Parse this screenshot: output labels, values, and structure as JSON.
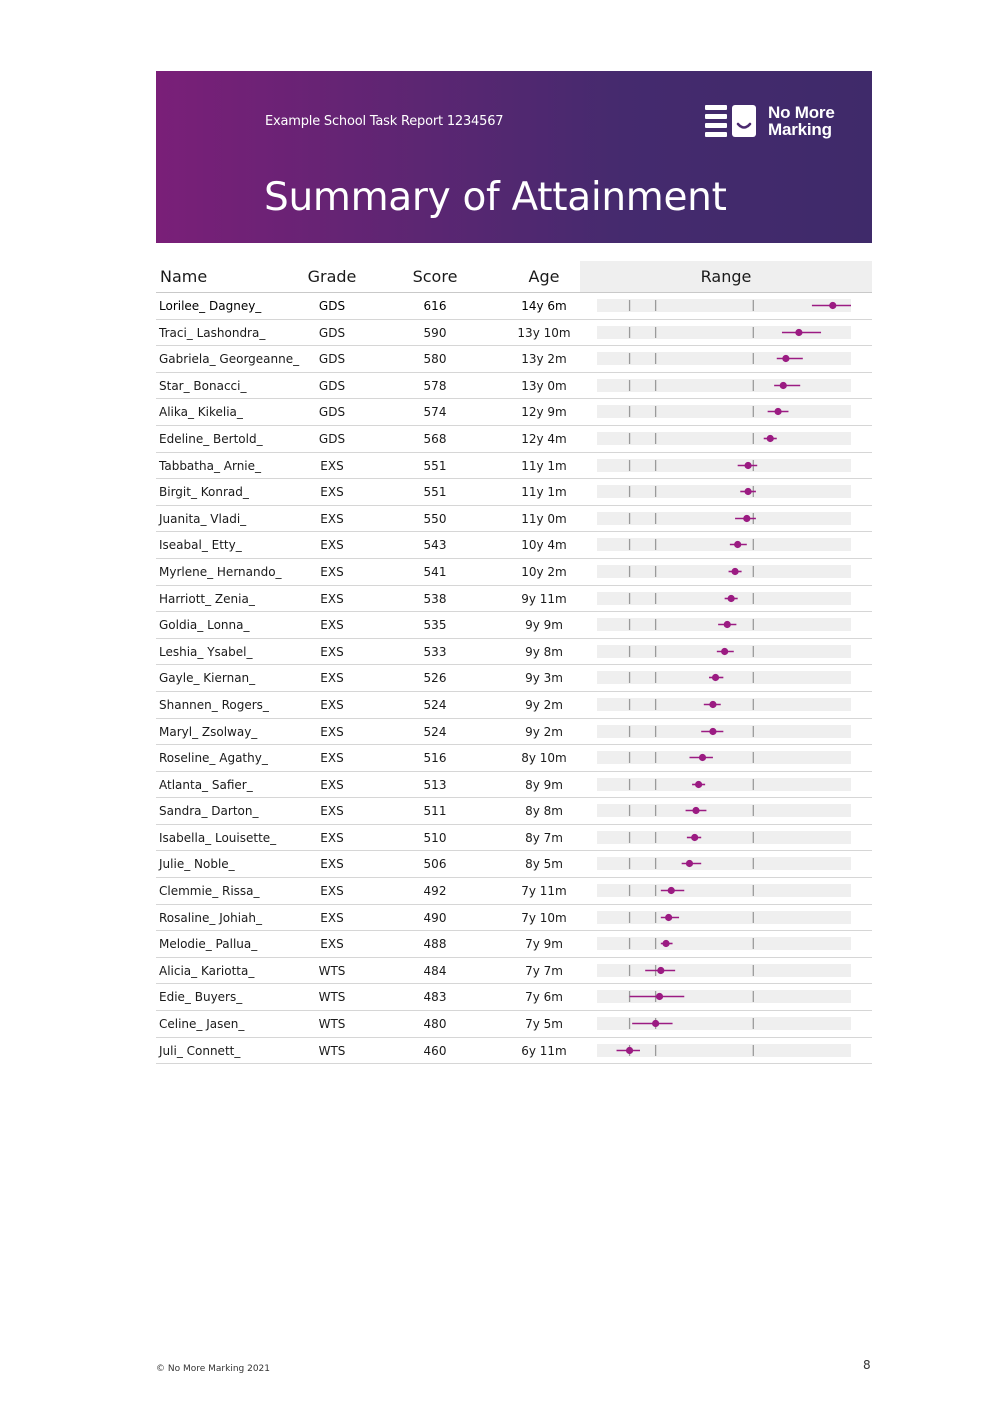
{
  "header": {
    "report_title": "Example School Task Report 1234567",
    "page_title": "Summary of Attainment",
    "logo_text_line1": "No More",
    "logo_text_line2": "Marking"
  },
  "table": {
    "columns": [
      "Name",
      "Grade",
      "Score",
      "Age",
      "Range"
    ],
    "range_axis": {
      "min": 435,
      "max": 630,
      "markers": [
        460,
        480,
        555
      ]
    },
    "rows": [
      {
        "name": "Lorilee_ Dagney_",
        "grade": "GDS",
        "score": "616",
        "age": "14y 6m",
        "est": 616,
        "low": 600,
        "high": 630
      },
      {
        "name": "Traci_ Lashondra_",
        "grade": "GDS",
        "score": "590",
        "age": "13y 10m",
        "est": 590,
        "low": 577,
        "high": 607
      },
      {
        "name": "Gabriela_ Georgeanne_",
        "grade": "GDS",
        "score": "580",
        "age": "13y 2m",
        "est": 580,
        "low": 573,
        "high": 593
      },
      {
        "name": "Star_ Bonacci_",
        "grade": "GDS",
        "score": "578",
        "age": "13y 0m",
        "est": 578,
        "low": 571,
        "high": 591
      },
      {
        "name": "Alika_ Kikelia_",
        "grade": "GDS",
        "score": "574",
        "age": "12y 9m",
        "est": 574,
        "low": 566,
        "high": 582
      },
      {
        "name": "Edeline_ Bertold_",
        "grade": "GDS",
        "score": "568",
        "age": "12y 4m",
        "est": 568,
        "low": 563,
        "high": 573
      },
      {
        "name": "Tabbatha_ Arnie_",
        "grade": "EXS",
        "score": "551",
        "age": "11y 1m",
        "est": 551,
        "low": 543,
        "high": 558
      },
      {
        "name": "Birgit_ Konrad_",
        "grade": "EXS",
        "score": "551",
        "age": "11y 1m",
        "est": 551,
        "low": 545,
        "high": 557
      },
      {
        "name": "Juanita_ Vladi_",
        "grade": "EXS",
        "score": "550",
        "age": "11y 0m",
        "est": 550,
        "low": 541,
        "high": 557
      },
      {
        "name": "Iseabal_ Etty_",
        "grade": "EXS",
        "score": "543",
        "age": "10y 4m",
        "est": 543,
        "low": 537,
        "high": 550
      },
      {
        "name": "Myrlene_ Hernando_",
        "grade": "EXS",
        "score": "541",
        "age": "10y 2m",
        "est": 541,
        "low": 536,
        "high": 546
      },
      {
        "name": "Harriott_ Zenia_",
        "grade": "EXS",
        "score": "538",
        "age": "9y 11m",
        "est": 538,
        "low": 533,
        "high": 543
      },
      {
        "name": "Goldia_ Lonna_",
        "grade": "EXS",
        "score": "535",
        "age": "9y 9m",
        "est": 535,
        "low": 528,
        "high": 542
      },
      {
        "name": "Leshia_ Ysabel_",
        "grade": "EXS",
        "score": "533",
        "age": "9y 8m",
        "est": 533,
        "low": 527,
        "high": 540
      },
      {
        "name": "Gayle_ Kiernan_",
        "grade": "EXS",
        "score": "526",
        "age": "9y 3m",
        "est": 526,
        "low": 521,
        "high": 532
      },
      {
        "name": "Shannen_ Rogers_",
        "grade": "EXS",
        "score": "524",
        "age": "9y 2m",
        "est": 524,
        "low": 517,
        "high": 530
      },
      {
        "name": "Maryl_ Zsolway_",
        "grade": "EXS",
        "score": "524",
        "age": "9y 2m",
        "est": 524,
        "low": 515,
        "high": 532
      },
      {
        "name": "Roseline_ Agathy_",
        "grade": "EXS",
        "score": "516",
        "age": "8y 10m",
        "est": 516,
        "low": 506,
        "high": 524
      },
      {
        "name": "Atlanta_ Safier_",
        "grade": "EXS",
        "score": "513",
        "age": "8y 9m",
        "est": 513,
        "low": 508,
        "high": 518
      },
      {
        "name": "Sandra_ Darton_",
        "grade": "EXS",
        "score": "511",
        "age": "8y 8m",
        "est": 511,
        "low": 503,
        "high": 519
      },
      {
        "name": "Isabella_ Louisette_",
        "grade": "EXS",
        "score": "510",
        "age": "8y 7m",
        "est": 510,
        "low": 504,
        "high": 515
      },
      {
        "name": "Julie_ Noble_",
        "grade": "EXS",
        "score": "506",
        "age": "8y 5m",
        "est": 506,
        "low": 500,
        "high": 515
      },
      {
        "name": "Clemmie_ Rissa_",
        "grade": "EXS",
        "score": "492",
        "age": "7y 11m",
        "est": 492,
        "low": 484,
        "high": 502
      },
      {
        "name": "Rosaline_ Johiah_",
        "grade": "EXS",
        "score": "490",
        "age": "7y 10m",
        "est": 490,
        "low": 484,
        "high": 498
      },
      {
        "name": "Melodie_ Pallua_",
        "grade": "EXS",
        "score": "488",
        "age": "7y 9m",
        "est": 488,
        "low": 484,
        "high": 493
      },
      {
        "name": "Alicia_ Kariotta_",
        "grade": "WTS",
        "score": "484",
        "age": "7y 7m",
        "est": 484,
        "low": 472,
        "high": 495
      },
      {
        "name": "Edie_ Buyers_",
        "grade": "WTS",
        "score": "483",
        "age": "7y 6m",
        "est": 483,
        "low": 460,
        "high": 502
      },
      {
        "name": "Celine_ Jasen_",
        "grade": "WTS",
        "score": "480",
        "age": "7y 5m",
        "est": 480,
        "low": 462,
        "high": 493
      },
      {
        "name": "Juli_ Connett_",
        "grade": "WTS",
        "score": "460",
        "age": "6y 11m",
        "est": 460,
        "low": 450,
        "high": 468
      }
    ]
  },
  "footer": {
    "copyright": "© No More Marking 2021",
    "page_number": "8"
  },
  "colors": {
    "accent": "#9b1b82",
    "banner_start": "#7a1f78",
    "banner_end": "#3f2a6a",
    "range_bg": "#efefef",
    "marker": "#9a9a9a"
  }
}
